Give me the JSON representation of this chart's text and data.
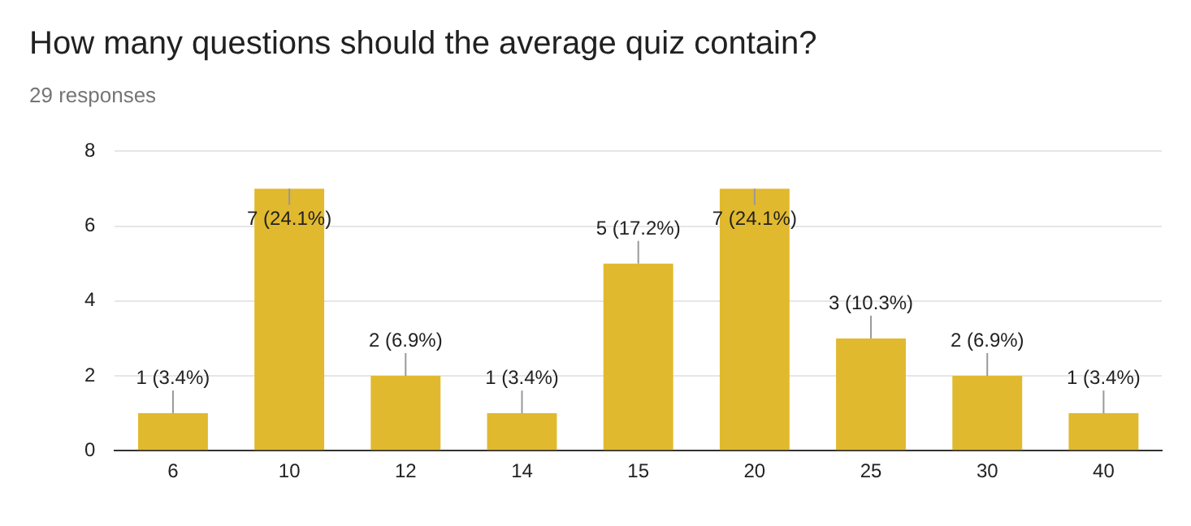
{
  "chart_data": {
    "type": "bar",
    "title": "How many questions should the average quiz contain?",
    "subtitle": "29 responses",
    "categories": [
      "6",
      "10",
      "12",
      "14",
      "15",
      "20",
      "25",
      "30",
      "40"
    ],
    "values": [
      1,
      7,
      2,
      1,
      5,
      7,
      3,
      2,
      1
    ],
    "value_labels": [
      "1 (3.4%)",
      "7 (24.1%)",
      "2 (6.9%)",
      "1 (3.4%)",
      "5 (17.2%)",
      "7 (24.1%)",
      "3 (10.3%)",
      "2 (6.9%)",
      "1 (3.4%)"
    ],
    "color": "#e1b92e",
    "ylim": [
      0,
      8
    ],
    "yticks": [
      0,
      2,
      4,
      6,
      8
    ],
    "grid": "y",
    "legend": false
  }
}
